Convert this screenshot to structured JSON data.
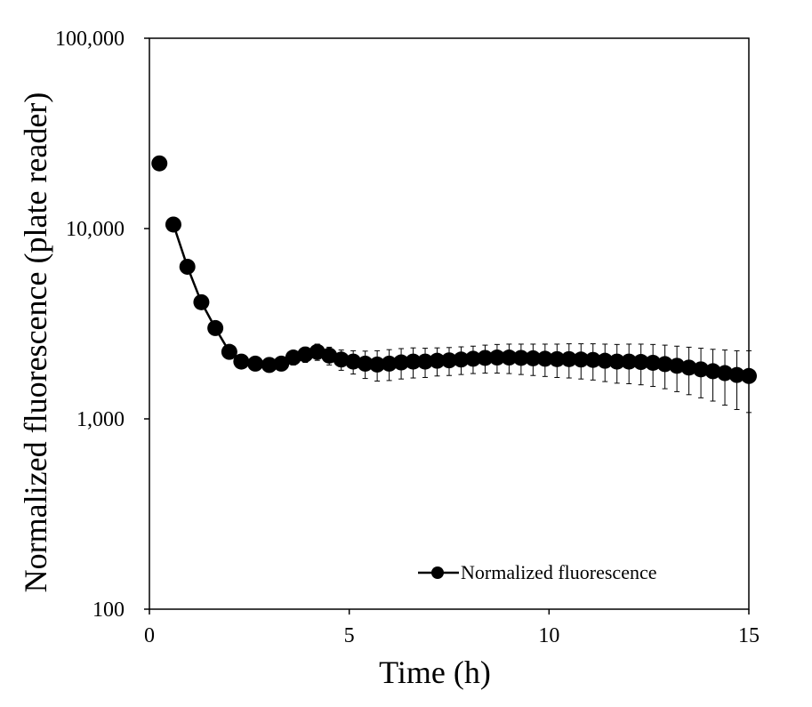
{
  "chart_data": {
    "type": "scatter",
    "title": "",
    "xlabel": "Time (h)",
    "ylabel": "Normalized fluorescence (plate reader)",
    "xlim": [
      0,
      15
    ],
    "ylim": [
      100,
      100000
    ],
    "yscale": "log",
    "grid": false,
    "legend_position": "bottom-right",
    "x_ticks": [
      0,
      5,
      10,
      15
    ],
    "x_tick_labels": [
      "0",
      "5",
      "10",
      "15"
    ],
    "y_ticks": [
      100,
      1000,
      10000,
      100000
    ],
    "y_tick_labels": [
      "100",
      "1,000",
      "10,000",
      "100,000"
    ],
    "series": [
      {
        "name": "Normalized fluorescence",
        "color": "#000000",
        "markers": true,
        "line": true,
        "x": [
          0.25,
          0.6,
          0.95,
          1.3,
          1.65,
          2.0,
          2.3,
          2.65,
          3.0,
          3.3,
          3.6,
          3.9,
          4.2,
          4.5,
          4.8,
          5.1,
          5.4,
          5.7,
          6.0,
          6.3,
          6.6,
          6.9,
          7.2,
          7.5,
          7.8,
          8.1,
          8.4,
          8.7,
          9.0,
          9.3,
          9.6,
          9.9,
          10.2,
          10.5,
          10.8,
          11.1,
          11.4,
          11.7,
          12.0,
          12.3,
          12.6,
          12.9,
          13.2,
          13.5,
          13.8,
          14.1,
          14.4,
          14.7,
          15.0
        ],
        "y": [
          22000,
          10500,
          6300,
          4100,
          3000,
          2250,
          2000,
          1950,
          1920,
          1950,
          2100,
          2180,
          2250,
          2150,
          2050,
          2000,
          1950,
          1930,
          1950,
          1980,
          2000,
          2000,
          2020,
          2030,
          2050,
          2070,
          2090,
          2100,
          2100,
          2090,
          2080,
          2070,
          2060,
          2060,
          2050,
          2040,
          2020,
          2000,
          2000,
          1990,
          1970,
          1940,
          1900,
          1860,
          1820,
          1780,
          1740,
          1700,
          1680
        ],
        "error": [
          0,
          0,
          0,
          0,
          0,
          0,
          0,
          0,
          120,
          150,
          180,
          200,
          220,
          230,
          250,
          280,
          320,
          350,
          360,
          360,
          360,
          350,
          340,
          340,
          340,
          340,
          350,
          360,
          370,
          380,
          390,
          400,
          410,
          420,
          430,
          440,
          450,
          460,
          470,
          480,
          490,
          500,
          510,
          520,
          530,
          540,
          560,
          580,
          600
        ]
      }
    ]
  }
}
